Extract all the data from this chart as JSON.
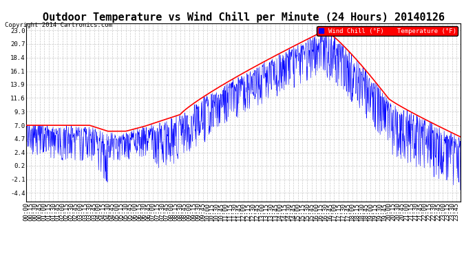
{
  "title": "Outdoor Temperature vs Wind Chill per Minute (24 Hours) 20140126",
  "copyright": "Copyright 2014 Cartronics.com",
  "legend_wind_chill": "Wind Chill (°F)",
  "legend_temperature": "Temperature (°F)",
  "yticks": [
    -4.4,
    -2.1,
    0.2,
    2.4,
    4.7,
    7.0,
    9.3,
    11.6,
    13.9,
    16.1,
    18.4,
    20.7,
    23.0
  ],
  "ylim": [
    -5.8,
    24.2
  ],
  "background_color": "#ffffff",
  "grid_color": "#bbbbbb",
  "temp_color": "#ff0000",
  "wind_color": "#0000ff",
  "title_fontsize": 11,
  "tick_fontsize": 6.5
}
